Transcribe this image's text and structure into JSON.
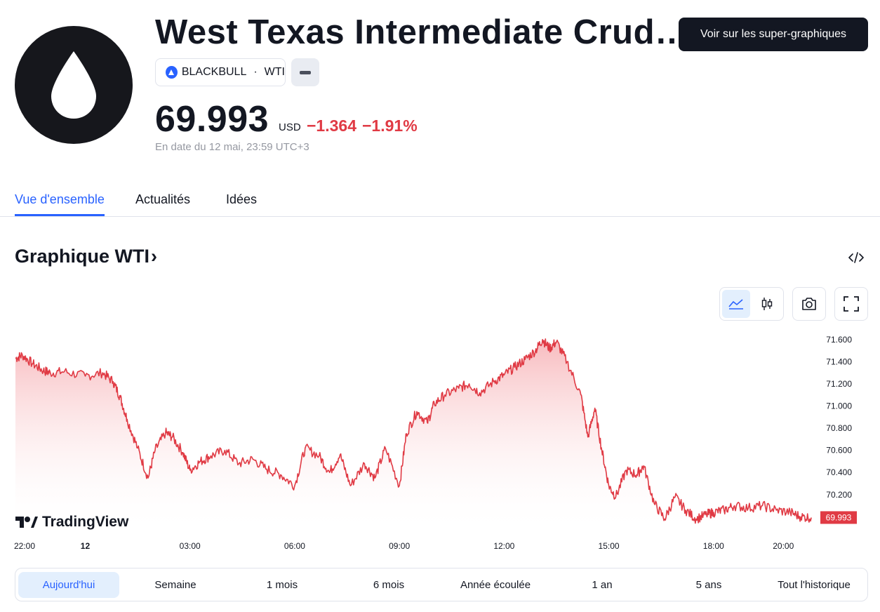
{
  "header": {
    "title": "West Texas Intermediate Crud…",
    "cta_label": "Voir sur les super-graphiques",
    "source_broker": "BLACKBULL",
    "source_separator": "·",
    "source_symbol": "WTI"
  },
  "quote": {
    "price": "69.993",
    "currency": "USD",
    "change": "−1.364",
    "change_percent": "−1.91%",
    "as_of": "En date du 12 mai, 23:59 UTC+3",
    "change_color": "#e03a44"
  },
  "tabs": [
    {
      "label": "Vue d'ensemble",
      "active": true
    },
    {
      "label": "Actualités",
      "active": false
    },
    {
      "label": "Idées",
      "active": false
    }
  ],
  "section": {
    "title": "Graphique WTI",
    "chevron": "›"
  },
  "chart_tools": {
    "area_icon": "area-chart-icon",
    "candles_icon": "candlestick-icon",
    "camera_icon": "camera-icon",
    "fullscreen_icon": "fullscreen-icon",
    "embed_icon": "code-embed-icon"
  },
  "brand": {
    "name": "TradingView"
  },
  "ranges": [
    {
      "label": "Aujourd'hui",
      "active": true
    },
    {
      "label": "Semaine",
      "active": false
    },
    {
      "label": "1 mois",
      "active": false
    },
    {
      "label": "6 mois",
      "active": false
    },
    {
      "label": "Année écoulée",
      "active": false
    },
    {
      "label": "1 an",
      "active": false
    },
    {
      "label": "5 ans",
      "active": false
    },
    {
      "label": "Tout l'historique",
      "active": false
    }
  ],
  "chart_data": {
    "type": "area",
    "line_color": "#e03a44",
    "fill_color": "#f5b5b9",
    "x_tick_labels": [
      "22:00",
      "12",
      "03:00",
      "06:00",
      "09:00",
      "12:00",
      "15:00",
      "18:00",
      "20:00"
    ],
    "x_tick_hours": [
      -2,
      0,
      3,
      6,
      9,
      12,
      15,
      18,
      20
    ],
    "y_ticks": [
      "70.200",
      "70.400",
      "70.600",
      "70.800",
      "71.000",
      "71.200",
      "71.400",
      "71.600"
    ],
    "ylim": [
      69.85,
      71.7
    ],
    "xlim_hours": [
      -2,
      21
    ],
    "last_value_label": "69.993",
    "hours": [
      -2,
      -1.8,
      -1.5,
      -1.2,
      -1,
      -0.6,
      0,
      0.5,
      0.8,
      1,
      1.2,
      1.5,
      1.8,
      2,
      2.3,
      2.5,
      2.8,
      3,
      3.3,
      3.6,
      4,
      4.4,
      4.8,
      5.2,
      5.6,
      6,
      6.3,
      6.7,
      7,
      7.3,
      7.6,
      8,
      8.3,
      8.6,
      9,
      9.2,
      9.5,
      9.8,
      10,
      10.3,
      10.7,
      11,
      11.3,
      11.7,
      12,
      12.3,
      12.6,
      12.9,
      13.1,
      13.3,
      13.5,
      13.8,
      14.2,
      14.4,
      14.6,
      14.8,
      15,
      15.2,
      15.5,
      15.8,
      16,
      16.3,
      16.6,
      16.9,
      17.2,
      17.5,
      17.8,
      18,
      18.3,
      18.6,
      19,
      19.4,
      19.8,
      20.2,
      20.5,
      20.8
    ],
    "values": [
      71.43,
      71.46,
      71.38,
      71.32,
      71.3,
      71.31,
      71.27,
      71.3,
      71.22,
      71.08,
      70.88,
      70.62,
      70.35,
      70.6,
      70.76,
      70.72,
      70.58,
      70.42,
      70.5,
      70.55,
      70.6,
      70.48,
      70.52,
      70.43,
      70.38,
      70.28,
      70.62,
      70.55,
      70.4,
      70.56,
      70.28,
      70.48,
      70.35,
      70.62,
      70.28,
      70.75,
      70.95,
      70.85,
      71.02,
      71.1,
      71.16,
      71.2,
      71.12,
      71.22,
      71.28,
      71.35,
      71.42,
      71.5,
      71.6,
      71.52,
      71.58,
      71.4,
      71.1,
      70.72,
      70.98,
      70.6,
      70.28,
      70.18,
      70.42,
      70.38,
      70.46,
      70.12,
      69.98,
      70.18,
      70.06,
      69.98,
      70.02,
      70.04,
      70.06,
      70.1,
      70.08,
      70.1,
      70.06,
      70.04,
      70.0,
      69.993
    ]
  }
}
